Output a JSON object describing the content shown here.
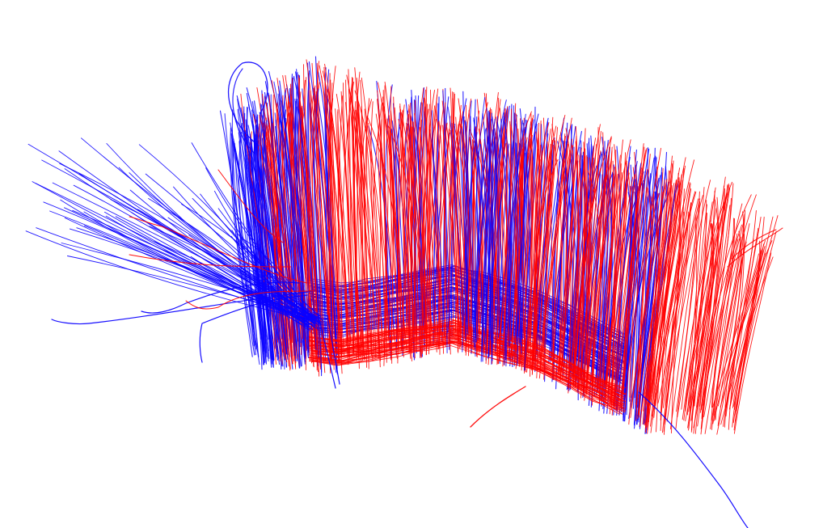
{
  "scene": {
    "subject": "tractography-streamlines",
    "background_color": "#ffffff",
    "bundles": [
      {
        "name": "blue-bundle",
        "color": "#0a00ff"
      },
      {
        "name": "red-bundle",
        "color": "#ff0000"
      }
    ]
  }
}
